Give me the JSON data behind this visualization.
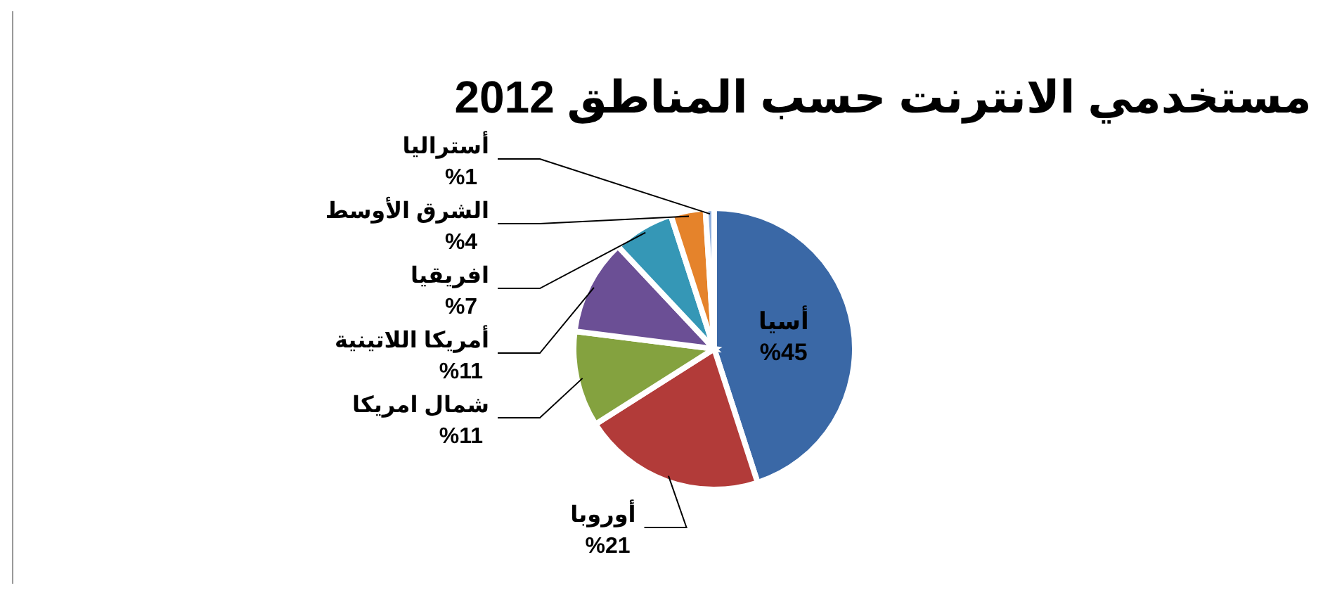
{
  "chart_data": {
    "type": "pie",
    "title": "مستخدمي الانترنت حسب المناطق 2012",
    "categories": [
      "أسيا",
      "أوروبا",
      "شمال امريكا",
      "أمريكا اللاتينية",
      "افريقيا",
      "الشرق الأوسط",
      "أستراليا"
    ],
    "values": [
      45,
      21,
      11,
      11,
      7,
      4,
      1
    ],
    "value_labels": [
      "%45",
      "%21",
      "%11",
      "%11",
      "%7",
      "%4",
      "%1"
    ],
    "colors": [
      "#3a68a6",
      "#b23b39",
      "#84a23f",
      "#6b4f95",
      "#3597b6",
      "#e5832b",
      "#8fb0de"
    ]
  }
}
